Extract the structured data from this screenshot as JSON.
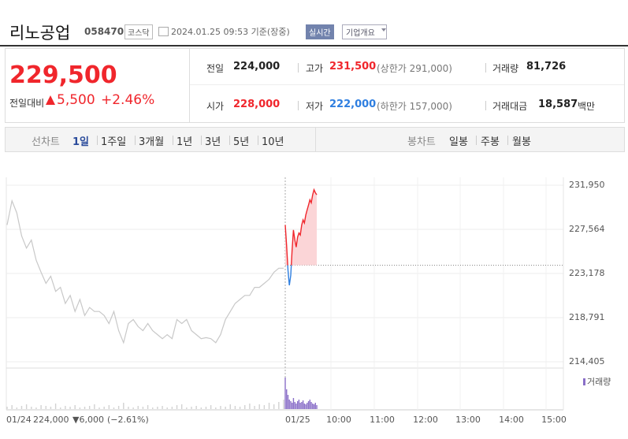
{
  "header": {
    "name": "리노공업",
    "code": "058470",
    "market": "코스닥",
    "datetime": "2024.01.25 09:53 기준(장중)",
    "live": "실시간",
    "overview": "기업개요"
  },
  "quote": {
    "price": "229,500",
    "change_label": "전일대비",
    "change": "5,500",
    "change_rate": "+2.46%"
  },
  "stats": {
    "prev_label": "전일",
    "prev": "224,000",
    "high_label": "고가",
    "high": "231,500",
    "upper_limit": "(상한가 291,000)",
    "volume_label": "거래량",
    "volume": "81,726",
    "open_label": "시가",
    "open": "228,000",
    "low_label": "저가",
    "low": "222,000",
    "lower_limit": "(하한가 157,000)",
    "amount_label": "거래대금",
    "amount": "18,587",
    "amount_unit": "백만"
  },
  "tabs": {
    "line_label": "선차트",
    "line_items": [
      "1일",
      "1주일",
      "3개월",
      "1년",
      "3년",
      "5년",
      "10년"
    ],
    "candle_label": "봉차트",
    "candle_items": [
      "일봉",
      "주봉",
      "월봉"
    ]
  },
  "chart_data": {
    "type": "line",
    "ylim": [
      214405,
      231950
    ],
    "yticks": [
      {
        "value": 214405,
        "label": "214,405"
      },
      {
        "value": 218791,
        "label": "218,791"
      },
      {
        "value": 223178,
        "label": "223,178"
      },
      {
        "value": 227564,
        "label": "227,564"
      },
      {
        "value": 231950,
        "label": "231,950"
      }
    ],
    "reference_line": 224000,
    "x_labels": [
      "01/24",
      "01/25",
      "10:00",
      "11:00",
      "12:00",
      "13:00",
      "14:00",
      "15:00"
    ],
    "prev_summary": {
      "close": "224,000",
      "change": "▼6,000",
      "rate": "(−2.61%)"
    },
    "volume_legend": "거래량",
    "prev_color": "#c8c8c8",
    "up_color": "#f0262c",
    "down_color": "#2e7ee0",
    "area_color": "#fbd5d7",
    "volume_prev_color": "#d2d2d2",
    "volume_today_color": "#8a6fc8",
    "series": [
      {
        "values": [
          228000,
          230400,
          229200,
          226900,
          225700,
          226500,
          224500,
          223300,
          222200,
          222900,
          221400,
          221800,
          220200,
          221000,
          219400,
          220600,
          219000,
          219800,
          219400,
          219400,
          219000,
          218200,
          219400,
          217500,
          216300,
          218200,
          218600,
          217900,
          217500,
          218200,
          217500,
          217100,
          216700,
          217100,
          216700,
          218600,
          218200,
          218600,
          217500,
          217100,
          216700,
          216800,
          216700,
          216300,
          217100,
          218600,
          219400,
          220200,
          220600,
          221000,
          221000,
          221800,
          221800,
          222200,
          222600,
          223300,
          223700,
          223700
        ]
      },
      {
        "values": [
          228000,
          226000,
          223500,
          222000,
          223000,
          225500,
          227500,
          226500,
          225800,
          226800,
          227200,
          227000,
          228000,
          228500,
          228200,
          229000,
          229500,
          230000,
          230500,
          230200,
          231000,
          231500,
          231200,
          231000
        ]
      }
    ],
    "volume": [
      {
        "values": [
          3,
          5,
          2,
          4,
          6,
          3,
          2,
          5,
          4,
          3,
          7,
          2,
          4,
          3,
          5,
          2,
          3,
          4,
          6,
          2,
          3,
          5,
          2,
          4,
          8,
          3,
          2,
          4,
          3,
          5,
          2,
          3,
          4,
          2,
          3,
          5,
          6,
          2,
          3,
          4,
          2,
          3,
          5,
          2,
          4,
          3,
          6,
          4,
          3,
          5,
          7,
          4,
          6,
          5,
          8,
          6,
          9,
          12
        ]
      },
      {
        "values": [
          40,
          25,
          18,
          12,
          10,
          8,
          14,
          9,
          7,
          10,
          12,
          8,
          9,
          11,
          7,
          6,
          8,
          10,
          12,
          9,
          7,
          6,
          8,
          5
        ]
      }
    ]
  }
}
